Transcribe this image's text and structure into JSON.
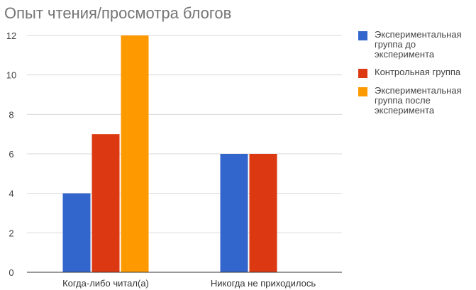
{
  "chart_data": {
    "type": "bar",
    "title": "Опыт чтения/просмотра блогов",
    "categories": [
      "Когда-либо читал(а)",
      "Никогда не приходилось"
    ],
    "series": [
      {
        "name": "Экспериментальная группа до эксперимента",
        "color": "#3366cc",
        "values": [
          4,
          6
        ]
      },
      {
        "name": "Контрольная группа",
        "color": "#dc3912",
        "values": [
          7,
          6
        ]
      },
      {
        "name": "Экспериментальная группа после эксперимента",
        "color": "#ff9900",
        "values": [
          12,
          null
        ]
      }
    ],
    "ylim": [
      0,
      12
    ],
    "yticks": [
      "0",
      "2",
      "4",
      "6",
      "8",
      "10",
      "12"
    ],
    "grid": true,
    "legend_position": "right"
  }
}
